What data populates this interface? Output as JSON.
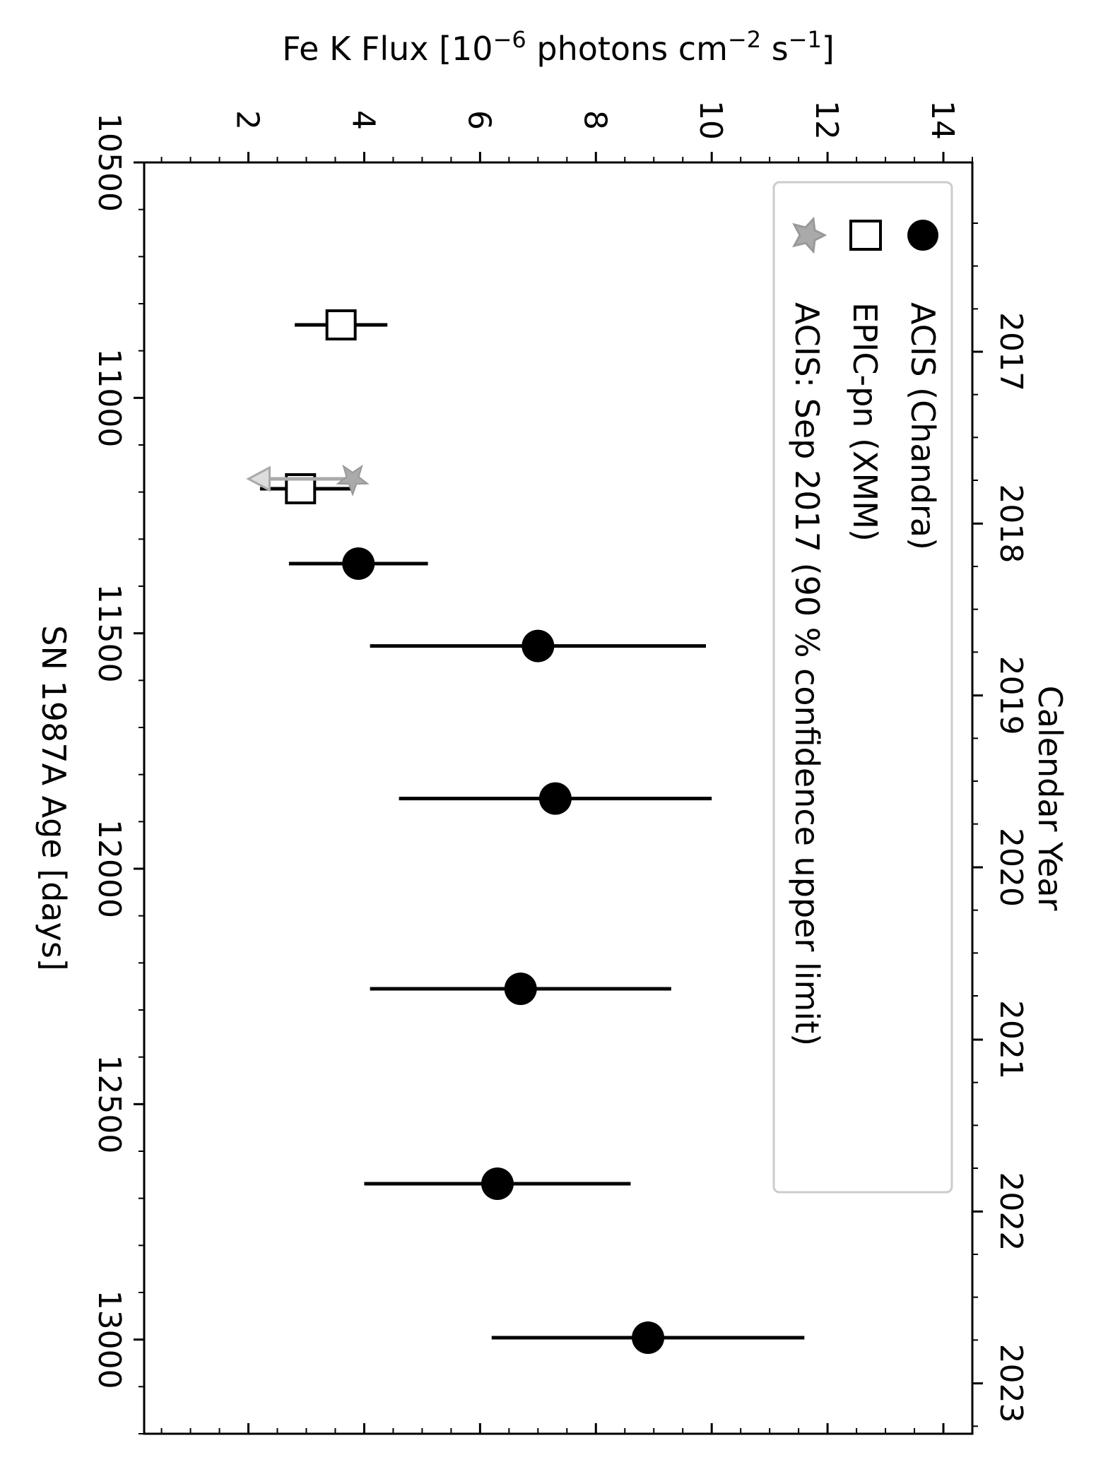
{
  "chart_data": {
    "type": "scatter",
    "orientation": "rotated-90-clockwise",
    "x_axis": {
      "label": "SN 1987A Age [days]",
      "range": [
        10500,
        13200
      ],
      "ticks": [
        10500,
        11000,
        11500,
        12000,
        12500,
        13000
      ],
      "tick_labels": [
        "10500",
        "11000",
        "11500",
        "12000",
        "12500",
        "13000"
      ],
      "minor_step": 100
    },
    "y_axis": {
      "label_prefix": "Fe K Flux [10",
      "label_exp1": "−6",
      "label_mid1": " photons cm",
      "label_exp2": "−2",
      "label_mid2": " s",
      "label_exp3": "−1",
      "label_suffix": "]",
      "range": [
        0.2,
        14.5
      ],
      "ticks": [
        2,
        4,
        6,
        8,
        10,
        12,
        14
      ],
      "tick_labels": [
        "2",
        "4",
        "6",
        "8",
        "10",
        "12",
        "14"
      ],
      "minor_step": 0.5
    },
    "secondary_x_axis": {
      "label": "Calendar Year",
      "ticks": [
        {
          "label": "2017",
          "day": 10902
        },
        {
          "label": "2018",
          "day": 11267
        },
        {
          "label": "2019",
          "day": 11632
        },
        {
          "label": "2020",
          "day": 11997
        },
        {
          "label": "2021",
          "day": 12363
        },
        {
          "label": "2022",
          "day": 12728
        },
        {
          "label": "2023",
          "day": 13093
        }
      ]
    },
    "series": [
      {
        "name": "ACIS (Chandra)",
        "marker": "filled-circle",
        "color": "#000000",
        "points": [
          {
            "x": 11352,
            "y": 3.9,
            "ylo": 2.7,
            "yhi": 5.1
          },
          {
            "x": 11527,
            "y": 7.0,
            "ylo": 4.1,
            "yhi": 9.9
          },
          {
            "x": 11851,
            "y": 7.3,
            "ylo": 4.6,
            "yhi": 10.0
          },
          {
            "x": 12255,
            "y": 6.7,
            "ylo": 4.1,
            "yhi": 9.3
          },
          {
            "x": 12669,
            "y": 6.3,
            "ylo": 4.0,
            "yhi": 8.6
          },
          {
            "x": 12996,
            "y": 8.9,
            "ylo": 6.2,
            "yhi": 11.6
          }
        ]
      },
      {
        "name": "EPIC-pn (XMM)",
        "marker": "open-square",
        "color": "#000000",
        "points": [
          {
            "x": 10845,
            "y": 3.6,
            "ylo": 2.8,
            "yhi": 4.4
          },
          {
            "x": 11193,
            "y": 2.9,
            "ylo": 2.2,
            "yhi": 3.8
          }
        ]
      },
      {
        "name": "ACIS: Sep 2017 (90 % confidence upper limit)",
        "marker": "star",
        "color": "#aaaaaa",
        "points": [
          {
            "x": 11172,
            "y": 3.8,
            "limit_arrow_to": 2.0
          }
        ]
      }
    ],
    "legend": {
      "placement": "top-right"
    },
    "grid": false
  }
}
